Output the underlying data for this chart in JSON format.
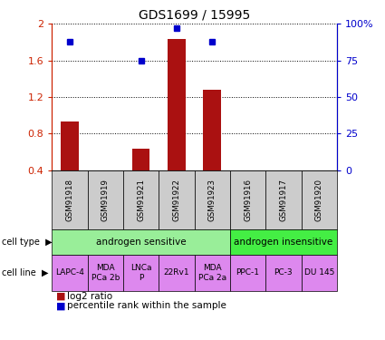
{
  "title": "GDS1699 / 15995",
  "samples": [
    "GSM91918",
    "GSM91919",
    "GSM91921",
    "GSM91922",
    "GSM91923",
    "GSM91916",
    "GSM91917",
    "GSM91920"
  ],
  "log2_ratio": [
    0.93,
    0.0,
    0.63,
    1.83,
    1.28,
    0.0,
    0.0,
    0.0
  ],
  "percentile_rank": [
    88,
    0,
    75,
    97,
    88,
    0,
    0,
    0
  ],
  "ylim_left": [
    0.4,
    2.0
  ],
  "ylim_right": [
    0,
    100
  ],
  "yticks_left": [
    0.4,
    0.8,
    1.2,
    1.6,
    2.0
  ],
  "yticks_right": [
    0,
    25,
    50,
    75,
    100
  ],
  "ytick_labels_left": [
    "0.4",
    "0.8",
    "1.2",
    "1.6",
    "2"
  ],
  "ytick_labels_right": [
    "0",
    "25",
    "50",
    "75",
    "100%"
  ],
  "bar_color": "#aa1111",
  "point_color": "#0000cc",
  "cell_types": [
    {
      "label": "androgen sensitive",
      "span": [
        0,
        5
      ],
      "color": "#99ee99"
    },
    {
      "label": "androgen insensitive",
      "span": [
        5,
        8
      ],
      "color": "#44ee44"
    }
  ],
  "cell_lines": [
    {
      "label": "LAPC-4",
      "span": [
        0,
        1
      ],
      "color": "#dd88ee"
    },
    {
      "label": "MDA\nPCa 2b",
      "span": [
        1,
        2
      ],
      "color": "#dd88ee"
    },
    {
      "label": "LNCa\nP",
      "span": [
        2,
        3
      ],
      "color": "#dd88ee"
    },
    {
      "label": "22Rv1",
      "span": [
        3,
        4
      ],
      "color": "#dd88ee"
    },
    {
      "label": "MDA\nPCa 2a",
      "span": [
        4,
        5
      ],
      "color": "#dd88ee"
    },
    {
      "label": "PPC-1",
      "span": [
        5,
        6
      ],
      "color": "#dd88ee"
    },
    {
      "label": "PC-3",
      "span": [
        6,
        7
      ],
      "color": "#dd88ee"
    },
    {
      "label": "DU 145",
      "span": [
        7,
        8
      ],
      "color": "#dd88ee"
    }
  ],
  "legend_bar_label": "log2 ratio",
  "legend_point_label": "percentile rank within the sample",
  "left_yaxis_color": "#cc2200",
  "right_yaxis_color": "#0000cc",
  "grid_color": "#000000",
  "sample_box_color": "#cccccc"
}
